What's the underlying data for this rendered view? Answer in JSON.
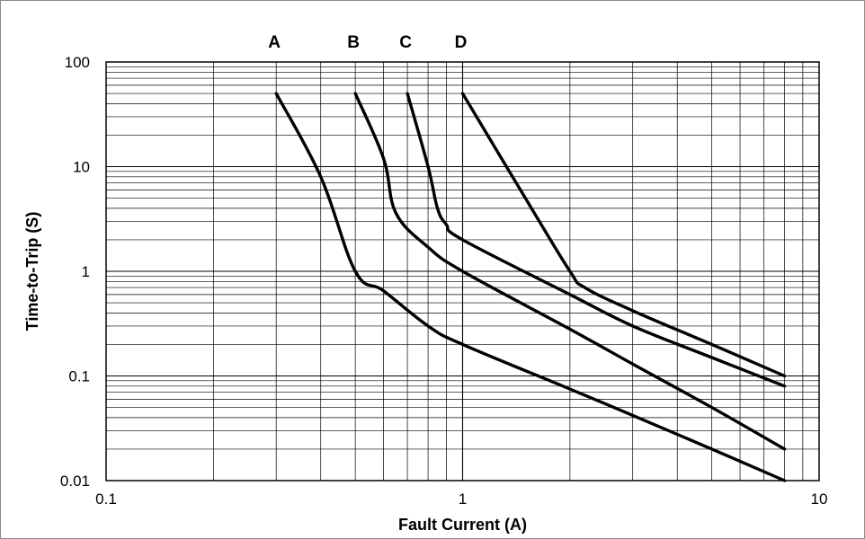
{
  "chart_data": {
    "type": "line",
    "xlabel": "Fault Current (A)",
    "ylabel": "Time-to-Trip (S)",
    "x_scale": "log",
    "y_scale": "log",
    "xlim": [
      0.1,
      10
    ],
    "ylim": [
      0.01,
      100
    ],
    "x_ticks": [
      "0.1",
      "1",
      "10"
    ],
    "y_ticks": [
      "100",
      "10",
      "1",
      "0.1",
      "0.01"
    ],
    "grid": true,
    "line_color": "#000000",
    "series": [
      {
        "name": "A",
        "x": [
          0.3,
          0.4,
          0.5,
          0.6,
          0.8,
          1,
          2,
          3,
          5,
          8
        ],
        "y": [
          50,
          8,
          1,
          0.65,
          0.3,
          0.2,
          0.075,
          0.042,
          0.02,
          0.01
        ]
      },
      {
        "name": "B",
        "x": [
          0.5,
          0.6,
          0.65,
          0.8,
          1,
          2,
          3,
          5,
          8
        ],
        "y": [
          50,
          12,
          3.6,
          1.7,
          1,
          0.28,
          0.13,
          0.05,
          0.02
        ]
      },
      {
        "name": "C",
        "x": [
          0.7,
          0.8,
          0.85,
          0.9,
          1,
          2,
          3,
          5,
          8
        ],
        "y": [
          50,
          10,
          4,
          2.8,
          2,
          0.6,
          0.3,
          0.15,
          0.08
        ]
      },
      {
        "name": "D",
        "x": [
          1,
          1.5,
          2,
          2.2,
          3,
          5,
          8
        ],
        "y": [
          50,
          5,
          1,
          0.7,
          0.42,
          0.2,
          0.1
        ]
      }
    ]
  }
}
